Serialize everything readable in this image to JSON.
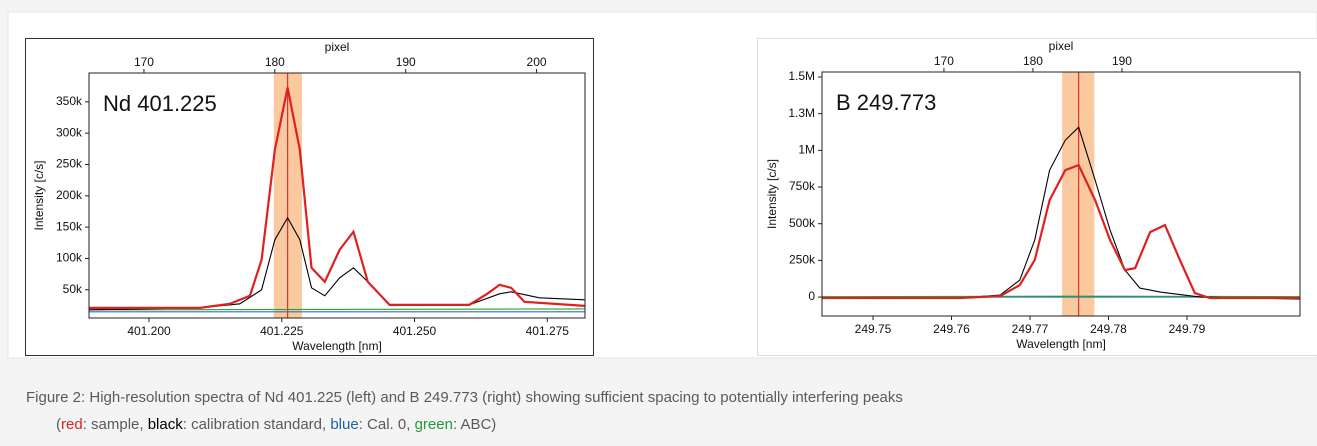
{
  "chart_data": [
    {
      "type": "line",
      "annotation": "Nd 401.225",
      "x_label": "Wavelength [nm]",
      "y_label": "Intensity [c/s]",
      "x2_label": "pixel",
      "xlim": [
        401.1887,
        401.2821
      ],
      "xticks": [
        {
          "value": 401.2,
          "label": "401.200"
        },
        401.225,
        {
          "value": 401.25,
          "label": "401.250"
        },
        401.275
      ],
      "x2lim": [
        165.8,
        203.7
      ],
      "x2ticks": [
        170,
        180,
        190,
        200
      ],
      "ylim": [
        5000,
        396000
      ],
      "yticks": [
        {
          "value": 50000,
          "label": "50k"
        },
        {
          "value": 100000,
          "label": "100k"
        },
        {
          "value": 150000,
          "label": "150k"
        },
        {
          "value": 200000,
          "label": "200k"
        },
        {
          "value": 250000,
          "label": "250k"
        },
        {
          "value": 300000,
          "label": "300k"
        },
        {
          "value": 350000,
          "label": "350k"
        }
      ],
      "highlight_range": [
        401.2235,
        401.2288
      ],
      "highlight_color": "#f9c08f",
      "marker_line": 401.2261,
      "marker_color": "#e03030",
      "series": [
        {
          "color": "#2a6fbf",
          "x": [
            401.1887,
            401.2821
          ],
          "values": [
            14900,
            14900
          ]
        },
        {
          "color": "#2ca02c",
          "x": [
            401.1887,
            401.2821
          ],
          "values": [
            18000,
            19500
          ]
        },
        {
          "color": "#000000",
          "x": [
            401.1887,
            401.2096,
            401.2171,
            401.2212,
            401.2237,
            401.2261,
            401.2284,
            401.2306,
            401.2331,
            401.2359,
            401.2385,
            401.2412,
            401.2453,
            401.2603,
            401.266,
            401.2682,
            401.2735,
            401.2821
          ],
          "values": [
            18000,
            21200,
            27600,
            50000,
            129900,
            165000,
            129900,
            53200,
            40400,
            69200,
            85100,
            62800,
            26000,
            26000,
            43600,
            46800,
            37200,
            34000
          ]
        },
        {
          "color": "#e02020",
          "x": [
            401.1887,
            401.2096,
            401.2152,
            401.219,
            401.2212,
            401.2237,
            401.2261,
            401.2284,
            401.2306,
            401.2331,
            401.2359,
            401.2385,
            401.2412,
            401.2453,
            401.2603,
            401.2637,
            401.266,
            401.2682,
            401.2707,
            401.2821
          ],
          "values": [
            21200,
            21200,
            27600,
            40400,
            97900,
            273600,
            372700,
            273600,
            85100,
            62800,
            113900,
            142700,
            62800,
            26000,
            26000,
            43600,
            58000,
            53200,
            30800,
            24400
          ]
        }
      ]
    },
    {
      "type": "line",
      "annotation": "B 249.773",
      "x_label": "Wavelength [nm]",
      "y_label": "Intensity [c/s]",
      "x2_label": "pixel",
      "xlim": [
        249.7435,
        249.8044
      ],
      "xticks": [
        249.75,
        249.76,
        249.77,
        249.78,
        249.79
      ],
      "x2lim": [
        156.3,
        210
      ],
      "x2ticks": [
        170,
        180,
        190
      ],
      "ylim": [
        -129000,
        1534000
      ],
      "yticks": [
        0,
        {
          "value": 250000,
          "label": "250k"
        },
        {
          "value": 500000,
          "label": "500k"
        },
        {
          "value": 750000,
          "label": "750k"
        },
        {
          "value": 1000000,
          "label": "1M"
        },
        {
          "value": 1250000,
          "label": "1.3M"
        },
        {
          "value": 1500000,
          "label": "1.5M"
        }
      ],
      "highlight_range": [
        249.7741,
        249.7782
      ],
      "highlight_color": "#f9c08f",
      "marker_line": 249.7762,
      "marker_color": "#e03030",
      "series": [
        {
          "color": "#2a6fbf",
          "x": [
            249.7435,
            249.8044
          ],
          "values": [
            0,
            0
          ]
        },
        {
          "color": "#2ca02c",
          "x": [
            249.7435,
            249.7762,
            249.8044
          ],
          "values": [
            3000,
            6000,
            3000
          ]
        },
        {
          "color": "#000000",
          "x": [
            249.7435,
            249.7611,
            249.7662,
            249.7687,
            249.7706,
            249.7725,
            249.7745,
            249.7762,
            249.7783,
            249.7802,
            249.7821,
            249.784,
            249.7866,
            249.7917,
            249.8044
          ],
          "values": [
            -6800,
            -6800,
            13600,
            115800,
            388300,
            865100,
            1069500,
            1158000,
            797000,
            456400,
            183900,
            61300,
            34100,
            0,
            -13600
          ]
        },
        {
          "color": "#e02020",
          "x": [
            249.7435,
            249.7611,
            249.7662,
            249.7687,
            249.7706,
            249.7725,
            249.7745,
            249.7762,
            249.7783,
            249.7802,
            249.7821,
            249.7834,
            249.7853,
            249.7872,
            249.7891,
            249.791,
            249.7929,
            249.8044
          ],
          "values": [
            -6800,
            -6800,
            6800,
            81700,
            252000,
            660800,
            865100,
            899200,
            660800,
            388300,
            183900,
            197500,
            442800,
            490500,
            252000,
            27200,
            -6800,
            -6800
          ]
        }
      ]
    }
  ],
  "caption": {
    "line1": "Figure 2: High-resolution spectra of Nd 401.225 (left) and B 249.773 (right) showing sufficient spacing to potentially interfering peaks",
    "line2": [
      {
        "text": "("
      },
      {
        "text": "red",
        "color": "#e02020"
      },
      {
        "text": ": sample, "
      },
      {
        "text": "black",
        "color": "#000000"
      },
      {
        "text": ": calibration standard, "
      },
      {
        "text": "blue",
        "color": "#1f5fa8"
      },
      {
        "text": ": Cal. 0, "
      },
      {
        "text": "green",
        "color": "#1f9a3a"
      },
      {
        "text": ": ABC)"
      }
    ]
  }
}
